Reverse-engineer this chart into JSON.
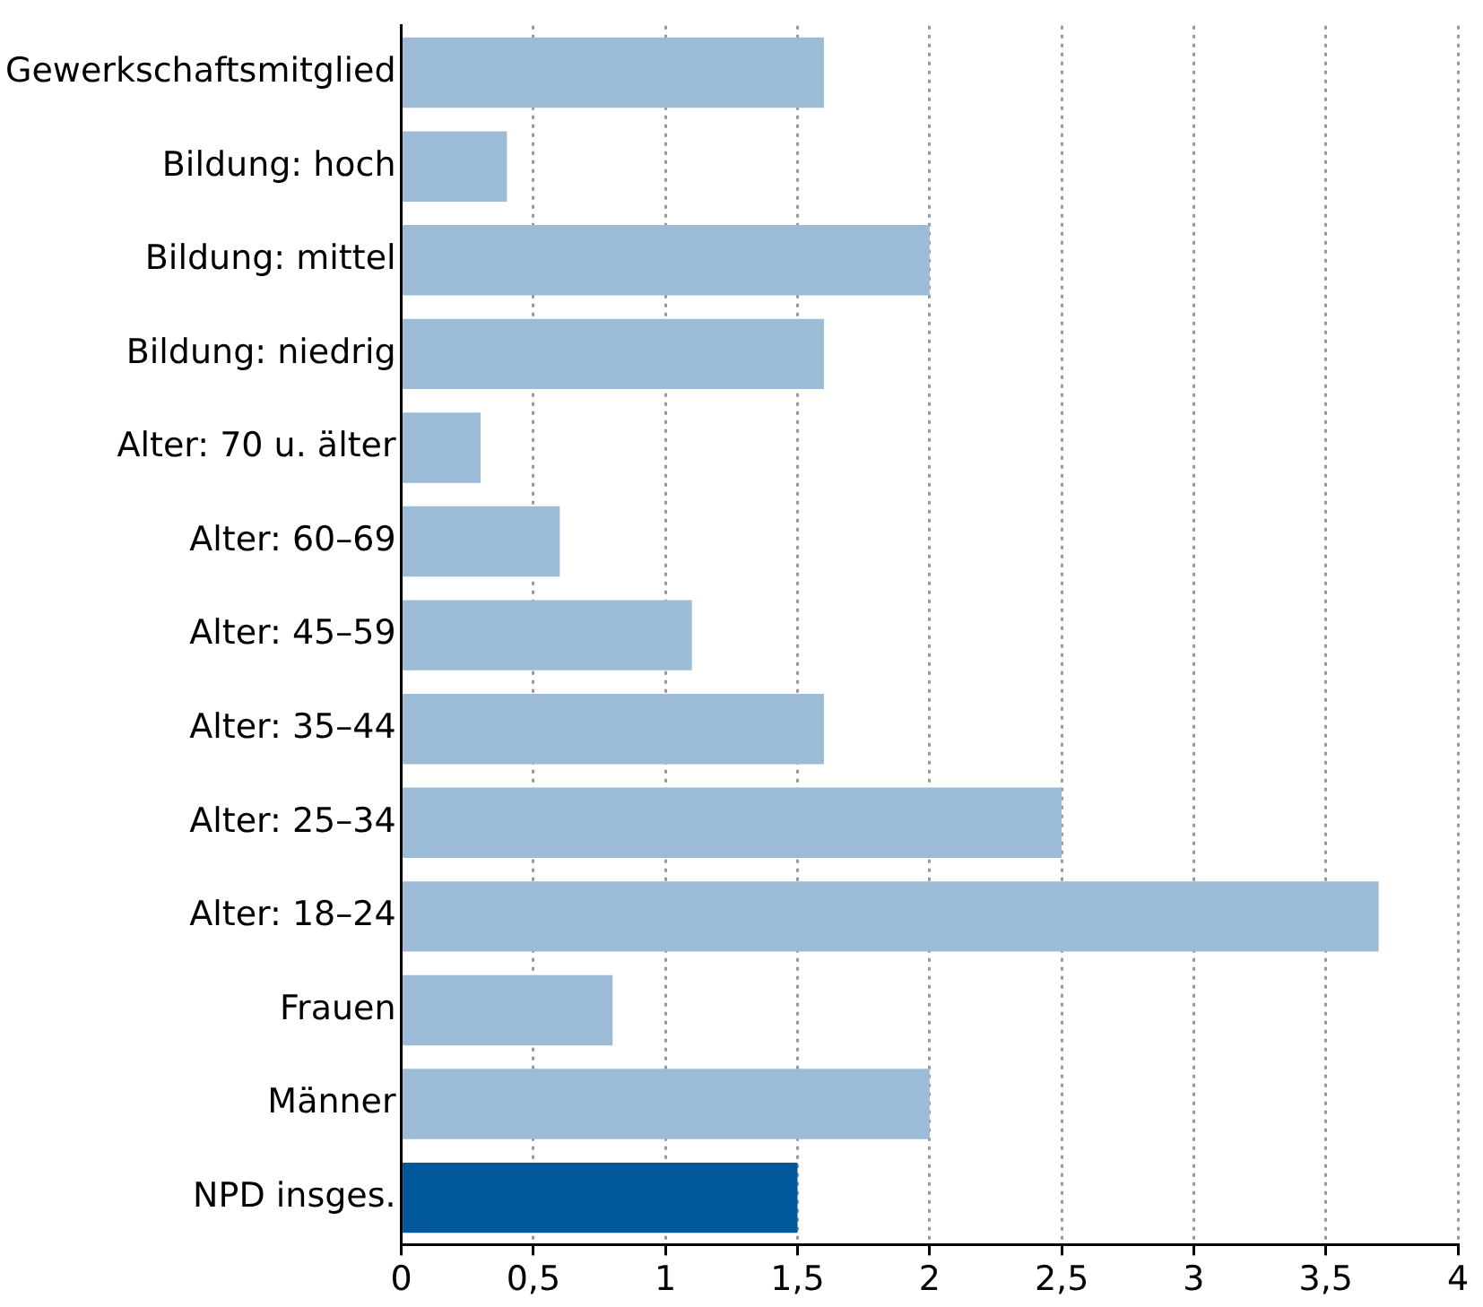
{
  "chart_data": {
    "type": "bar",
    "orientation": "horizontal",
    "categories": [
      "Gewerkschaftsmitglied",
      "Bildung: hoch",
      "Bildung: mittel",
      "Bildung: niedrig",
      "Alter: 70 u. älter",
      "Alter: 60–69",
      "Alter: 45–59",
      "Alter: 35–44",
      "Alter: 25–34",
      "Alter: 18–24",
      "Frauen",
      "Männer",
      "NPD insges."
    ],
    "values": [
      1.6,
      0.4,
      2.0,
      1.6,
      0.3,
      0.6,
      1.1,
      1.6,
      2.5,
      3.7,
      0.8,
      2.0,
      1.5
    ],
    "colors": [
      "#9bbbd6",
      "#9bbbd6",
      "#9bbbd6",
      "#9bbbd6",
      "#9bbbd6",
      "#9bbbd6",
      "#9bbbd6",
      "#9bbbd6",
      "#9bbbd6",
      "#9bbbd6",
      "#9bbbd6",
      "#9bbbd6",
      "#00589b"
    ],
    "xlim": [
      0,
      4
    ],
    "xticks": [
      0,
      {
        "value": 0.5,
        "label": "0,5"
      },
      1,
      {
        "value": 1.5,
        "label": "1,5"
      },
      2,
      {
        "value": 2.5,
        "label": "2,5"
      },
      3,
      {
        "value": 3.5,
        "label": "3,5"
      },
      4
    ],
    "grid": "x",
    "legend": false
  }
}
